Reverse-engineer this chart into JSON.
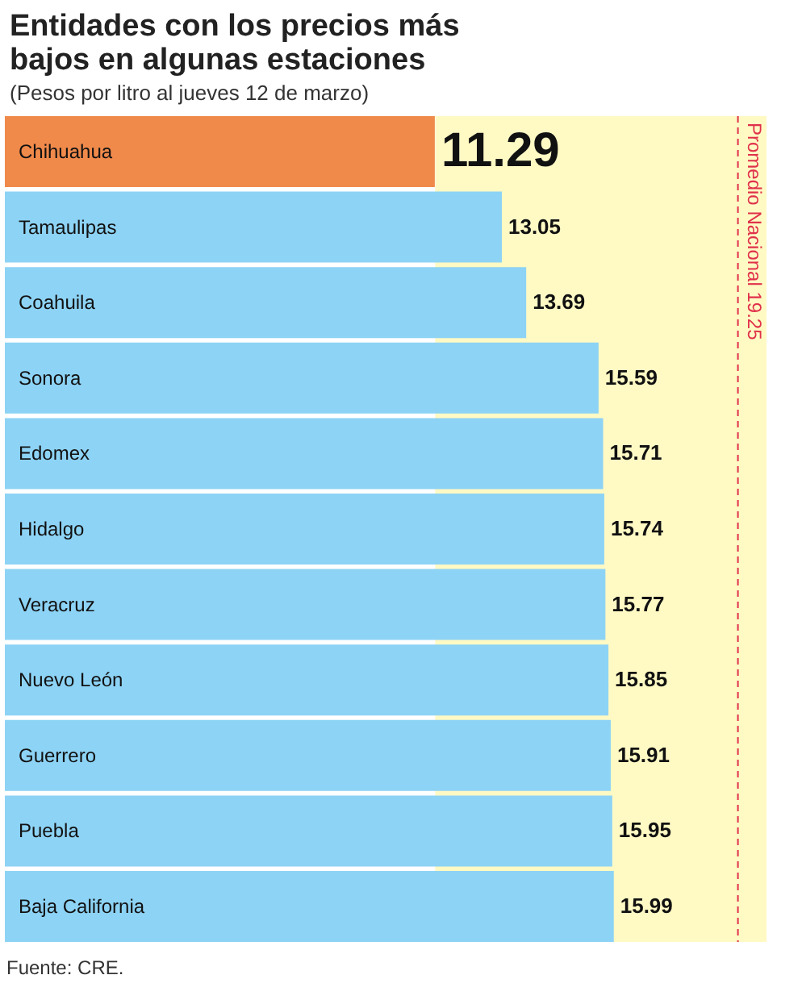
{
  "chart_data": {
    "type": "bar",
    "orientation": "horizontal",
    "title": "Entidades con los precios más bajos en algunas estaciones",
    "subtitle": "(Pesos por litro al jueves 12 de marzo)",
    "categories": [
      "Chihuahua",
      "Tamaulipas",
      "Coahuila",
      "Sonora",
      "Edomex",
      "Hidalgo",
      "Veracruz",
      "Nuevo León",
      "Guerrero",
      "Puebla",
      "Baja California"
    ],
    "values": [
      11.29,
      13.05,
      13.69,
      15.59,
      15.71,
      15.74,
      15.77,
      15.85,
      15.91,
      15.95,
      15.99
    ],
    "colors": [
      "#f08a4b",
      "#8dd3f5",
      "#8dd3f5",
      "#8dd3f5",
      "#8dd3f5",
      "#8dd3f5",
      "#8dd3f5",
      "#8dd3f5",
      "#8dd3f5",
      "#8dd3f5",
      "#8dd3f5"
    ],
    "data_labels": true,
    "tick_labels": "y",
    "ref_lines": [
      {
        "axis": "x",
        "value": 19.25,
        "label": "Promedio Nacional 19.25",
        "color": "#e0314b",
        "line_style": "dashed"
      }
    ],
    "bands": [
      {
        "axis": "x",
        "from": 11.3,
        "to": 20,
        "color": "#fff9c4"
      }
    ],
    "annotations": [
      "Fuente: CRE."
    ]
  }
}
